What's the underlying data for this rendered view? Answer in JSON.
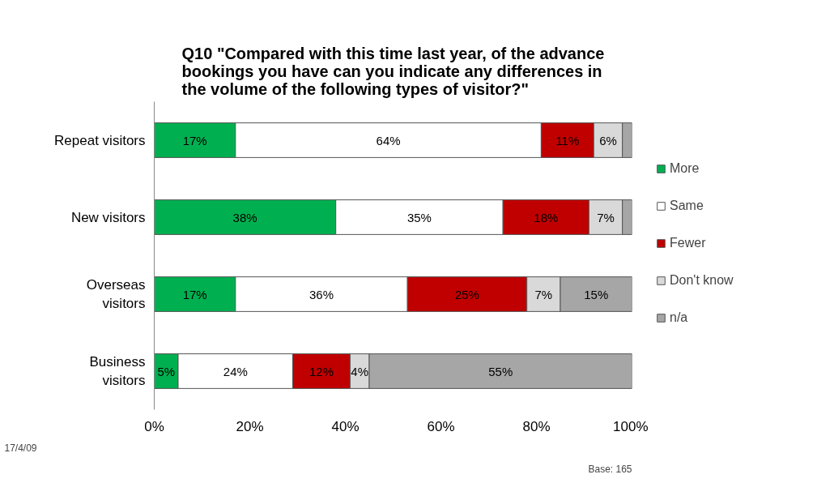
{
  "chart_data": {
    "type": "bar",
    "orientation": "horizontal",
    "stacked": true,
    "title": "Q10 \"Compared with this time last year, of the advance bookings you have can you indicate any differences in the volume of the following types of visitor?\"",
    "categories": [
      "Repeat visitors",
      "New visitors",
      "Overseas visitors",
      "Business visitors"
    ],
    "series": [
      {
        "name": "More",
        "color": "#00b050",
        "values": [
          17,
          38,
          17,
          5
        ],
        "value_labels": [
          "17%",
          "38%",
          "17%",
          "5%"
        ]
      },
      {
        "name": "Same",
        "color": "#ffffff",
        "values": [
          64,
          35,
          36,
          24
        ],
        "value_labels": [
          "64%",
          "35%",
          "36%",
          "24%"
        ]
      },
      {
        "name": "Fewer",
        "color": "#c00000",
        "values": [
          11,
          18,
          25,
          12
        ],
        "value_labels": [
          "11%",
          "18%",
          "25%",
          "12%"
        ]
      },
      {
        "name": "Don't know",
        "color": "#d9d9d9",
        "values": [
          6,
          7,
          7,
          4
        ],
        "value_labels": [
          "6%",
          "7%",
          "7%",
          "4%"
        ]
      },
      {
        "name": "n/a",
        "color": "#a6a6a6",
        "values": [
          2,
          2,
          15,
          55
        ],
        "value_labels": [
          null,
          null,
          "15%",
          "55%"
        ]
      }
    ],
    "xlim": [
      0,
      100
    ],
    "xticks": [
      {
        "value": 0,
        "label": "0%"
      },
      {
        "value": 20,
        "label": "20%"
      },
      {
        "value": 40,
        "label": "40%"
      },
      {
        "value": 60,
        "label": "60%"
      },
      {
        "value": 80,
        "label": "80%"
      },
      {
        "value": 100,
        "label": "100%"
      }
    ],
    "grid": false,
    "legend": "right",
    "annotations": [
      "17/4/09",
      "Base: 165"
    ]
  }
}
